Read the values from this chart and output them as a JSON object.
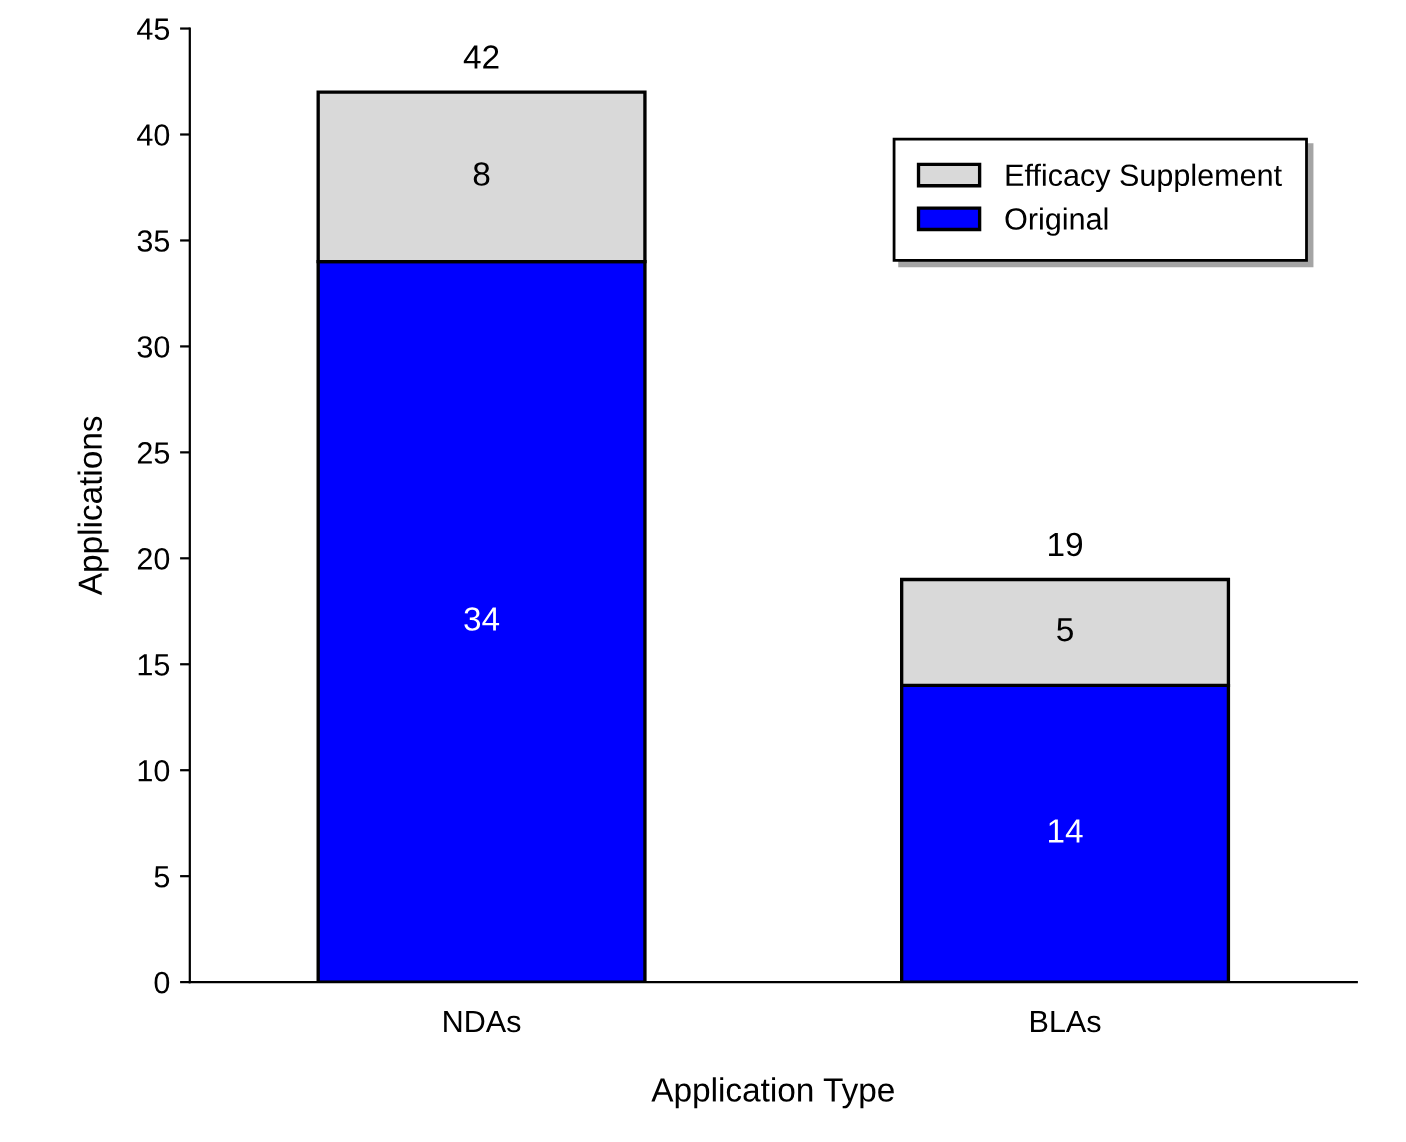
{
  "chart_data": {
    "type": "bar",
    "stacked": true,
    "xlabel": "Application Type",
    "ylabel": "Applications",
    "categories": [
      "NDAs",
      "BLAs"
    ],
    "series": [
      {
        "name": "Original",
        "color": "#0000ff",
        "values": [
          34,
          14
        ]
      },
      {
        "name": "Efficacy Supplement",
        "color": "#d9d9d9",
        "values": [
          8,
          5
        ]
      }
    ],
    "totals": [
      "42",
      "19"
    ],
    "data_labels": true,
    "ylim": [
      0,
      45
    ],
    "yticks": [
      0,
      5,
      10,
      15,
      20,
      25,
      30,
      35,
      40,
      45
    ],
    "grid": false,
    "legend": "top right"
  }
}
